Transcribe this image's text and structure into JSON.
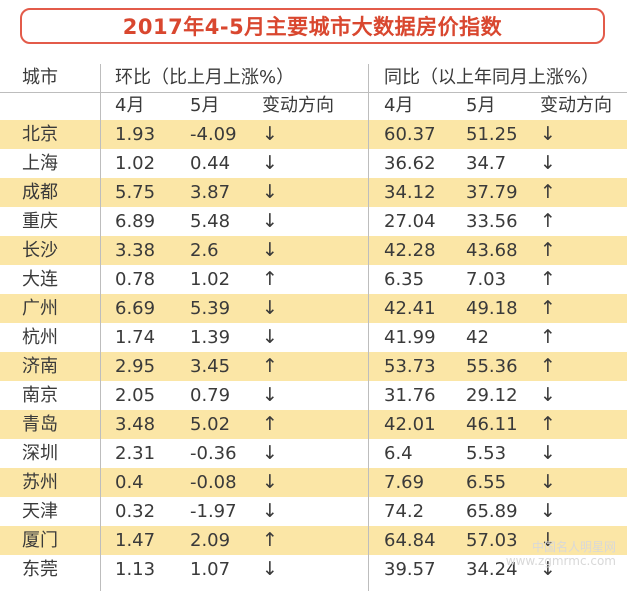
{
  "chart_data": {
    "type": "table",
    "title": "2017年4-5月主要城市大数据房价指数",
    "header": {
      "city": "城市",
      "mom_group": "环比（比上月上涨%）",
      "yoy_group": "同比（以上年同月上涨%）",
      "month4": "4月",
      "month5": "5月",
      "direction": "变动方向"
    },
    "rows": [
      {
        "city": "北京",
        "mom_apr": "1.93",
        "mom_may": "-4.09",
        "mom_dir": "↓",
        "yoy_apr": "60.37",
        "yoy_may": "51.25",
        "yoy_dir": "↓"
      },
      {
        "city": "上海",
        "mom_apr": "1.02",
        "mom_may": "0.44",
        "mom_dir": "↓",
        "yoy_apr": "36.62",
        "yoy_may": "34.7",
        "yoy_dir": "↓"
      },
      {
        "city": "成都",
        "mom_apr": "5.75",
        "mom_may": "3.87",
        "mom_dir": "↓",
        "yoy_apr": "34.12",
        "yoy_may": "37.79",
        "yoy_dir": "↑"
      },
      {
        "city": "重庆",
        "mom_apr": "6.89",
        "mom_may": "5.48",
        "mom_dir": "↓",
        "yoy_apr": "27.04",
        "yoy_may": "33.56",
        "yoy_dir": "↑"
      },
      {
        "city": "长沙",
        "mom_apr": "3.38",
        "mom_may": "2.6",
        "mom_dir": "↓",
        "yoy_apr": "42.28",
        "yoy_may": "43.68",
        "yoy_dir": "↑"
      },
      {
        "city": "大连",
        "mom_apr": "0.78",
        "mom_may": "1.02",
        "mom_dir": "↑",
        "yoy_apr": "6.35",
        "yoy_may": "7.03",
        "yoy_dir": "↑"
      },
      {
        "city": "广州",
        "mom_apr": "6.69",
        "mom_may": "5.39",
        "mom_dir": "↓",
        "yoy_apr": "42.41",
        "yoy_may": "49.18",
        "yoy_dir": "↑"
      },
      {
        "city": "杭州",
        "mom_apr": "1.74",
        "mom_may": "1.39",
        "mom_dir": "↓",
        "yoy_apr": "41.99",
        "yoy_may": "42",
        "yoy_dir": "↑"
      },
      {
        "city": "济南",
        "mom_apr": "2.95",
        "mom_may": "3.45",
        "mom_dir": "↑",
        "yoy_apr": "53.73",
        "yoy_may": "55.36",
        "yoy_dir": "↑"
      },
      {
        "city": "南京",
        "mom_apr": "2.05",
        "mom_may": "0.79",
        "mom_dir": "↓",
        "yoy_apr": "31.76",
        "yoy_may": "29.12",
        "yoy_dir": "↓"
      },
      {
        "city": "青岛",
        "mom_apr": "3.48",
        "mom_may": "5.02",
        "mom_dir": "↑",
        "yoy_apr": "42.01",
        "yoy_may": "46.11",
        "yoy_dir": "↑"
      },
      {
        "city": "深圳",
        "mom_apr": "2.31",
        "mom_may": "-0.36",
        "mom_dir": "↓",
        "yoy_apr": "6.4",
        "yoy_may": "5.53",
        "yoy_dir": "↓"
      },
      {
        "city": "苏州",
        "mom_apr": "0.4",
        "mom_may": "-0.08",
        "mom_dir": "↓",
        "yoy_apr": "7.69",
        "yoy_may": "6.55",
        "yoy_dir": "↓"
      },
      {
        "city": "天津",
        "mom_apr": "0.32",
        "mom_may": "-1.97",
        "mom_dir": "↓",
        "yoy_apr": "74.2",
        "yoy_may": "65.89",
        "yoy_dir": "↓"
      },
      {
        "city": "厦门",
        "mom_apr": "1.47",
        "mom_may": "2.09",
        "mom_dir": "↑",
        "yoy_apr": "64.84",
        "yoy_may": "57.03",
        "yoy_dir": "↓"
      },
      {
        "city": "东莞",
        "mom_apr": "1.13",
        "mom_may": "1.07",
        "mom_dir": "↓",
        "yoy_apr": "39.57",
        "yoy_may": "34.24",
        "yoy_dir": "↓"
      }
    ]
  },
  "watermark": {
    "line1": "中国名人明星网",
    "line2": "www.zgmrmc.com"
  },
  "colors": {
    "title": "#d9472f",
    "title_border": "#e35b4a",
    "band": "#fbe6a6",
    "text": "#3a3a3a",
    "grid": "#bdbdbd"
  }
}
